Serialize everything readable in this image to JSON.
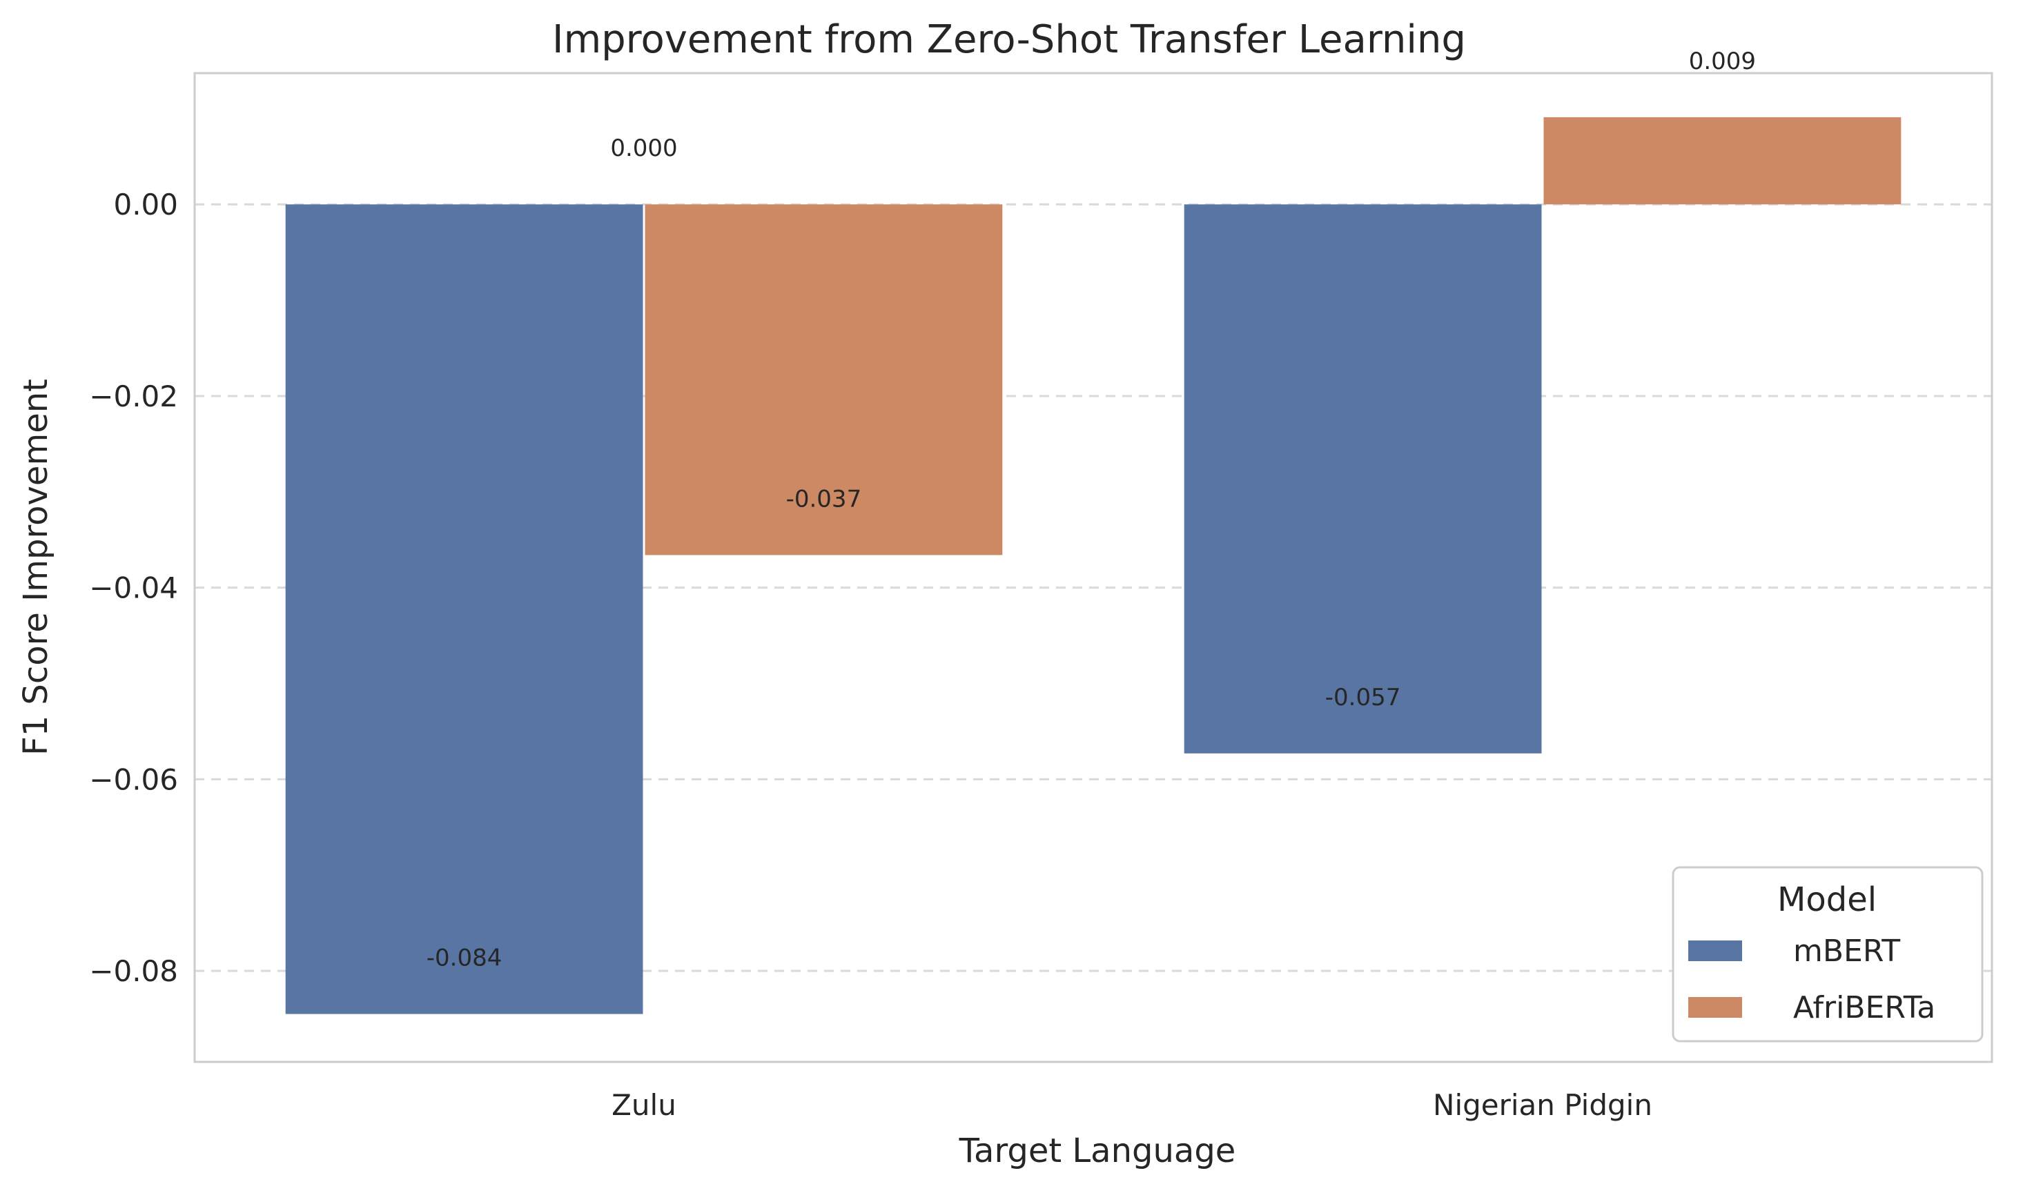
{
  "chart_data": {
    "type": "bar",
    "title": "Improvement from Zero-Shot Transfer Learning",
    "xlabel": "Target Language",
    "ylabel": "F1 Score Improvement",
    "categories": [
      "Zulu",
      "Nigerian Pidgin"
    ],
    "series": [
      {
        "name": "mBERT",
        "values": [
          -0.0845,
          -0.0573
        ],
        "labels": [
          "-0.084",
          "-0.057"
        ],
        "color": "#5975a4"
      },
      {
        "name": "AfriBERTa",
        "values": [
          -0.0366,
          0.0091
        ],
        "labels": [
          "-0.037",
          "0.009"
        ],
        "color": "#cc8963"
      }
    ],
    "extra_labels": [
      {
        "text": "0.000",
        "category": "Zulu"
      }
    ],
    "ylim": [
      -0.0895,
      0.0137
    ],
    "yticks": [
      0.0,
      -0.02,
      -0.04,
      -0.06,
      -0.08
    ],
    "ytick_labels": [
      "0.00",
      "−0.02",
      "−0.04",
      "−0.06",
      "−0.08"
    ],
    "grid": "y-dashed",
    "legend": {
      "title": "Model",
      "placement": "lower-right"
    }
  }
}
